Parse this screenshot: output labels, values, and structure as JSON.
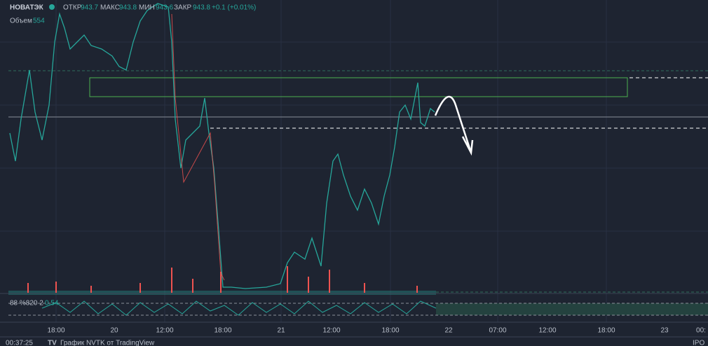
{
  "header": {
    "symbol": "НОВАТЭК",
    "open_label": "ОТКР",
    "open": "943.7",
    "high_label": "МАКС",
    "high": "943.8",
    "low_label": "МИН",
    "low": "943.6",
    "close_label": "ЗАКР",
    "close": "943.8",
    "change": "+0.1 (+0.01%)"
  },
  "volume": {
    "label": "Объем",
    "value": "554"
  },
  "indicator": {
    "label": "88 %820 2",
    "value": "0.54"
  },
  "time_axis": {
    "labels": [
      "18:00",
      "20",
      "12:00",
      "18:00",
      "21",
      "12:00",
      "18:00",
      "22",
      "07:00",
      "12:00",
      "18:00",
      "23",
      "00:"
    ]
  },
  "footer": {
    "clock": "00:37:25",
    "credit": "График NVTK от TradingView",
    "right": "IPO_"
  }
}
